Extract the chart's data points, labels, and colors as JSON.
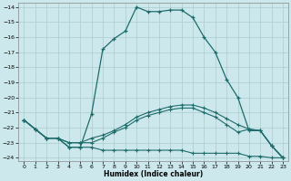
{
  "xlabel": "Humidex (Indice chaleur)",
  "bg_color": "#cce8ec",
  "grid_color": "#aacccc",
  "line_color": "#1e6b6b",
  "xlim": [
    -0.5,
    23.5
  ],
  "ylim": [
    -24.2,
    -13.7
  ],
  "yticks": [
    -24,
    -23,
    -22,
    -21,
    -20,
    -19,
    -18,
    -17,
    -16,
    -15,
    -14
  ],
  "xticks": [
    0,
    1,
    2,
    3,
    4,
    5,
    6,
    7,
    8,
    9,
    10,
    11,
    12,
    13,
    14,
    15,
    16,
    17,
    18,
    19,
    20,
    21,
    22,
    23
  ],
  "line1_x": [
    0,
    1,
    2,
    3,
    4,
    5,
    6,
    7,
    8,
    9,
    10,
    11,
    12,
    13,
    14,
    15,
    16,
    17,
    18,
    19,
    20,
    21,
    22,
    23
  ],
  "line1_y": [
    -21.5,
    -22.1,
    -22.7,
    -22.7,
    -23.3,
    -23.3,
    -21.1,
    -16.8,
    -16.1,
    -15.6,
    -14.0,
    -14.3,
    -14.3,
    -14.2,
    -14.2,
    -14.7,
    -16.0,
    -17.0,
    -18.8,
    -20.0,
    -22.2,
    -22.2,
    -23.2,
    -24.0
  ],
  "line2_x": [
    0,
    1,
    2,
    3,
    4,
    5,
    6,
    7,
    8,
    9,
    10,
    11,
    12,
    13,
    14,
    15,
    16,
    17,
    18,
    19,
    20,
    21,
    22,
    23
  ],
  "line2_y": [
    -21.5,
    -22.1,
    -22.7,
    -22.7,
    -23.3,
    -23.3,
    -23.3,
    -23.5,
    -23.5,
    -23.5,
    -23.5,
    -23.5,
    -23.5,
    -23.5,
    -23.5,
    -23.7,
    -23.7,
    -23.7,
    -23.7,
    -23.7,
    -23.9,
    -23.9,
    -24.0,
    -24.0
  ],
  "line3_x": [
    0,
    1,
    2,
    3,
    4,
    5,
    6,
    7,
    8,
    9,
    10,
    11,
    12,
    13,
    14,
    15,
    16,
    17,
    18,
    19,
    20,
    21,
    22,
    23
  ],
  "line3_y": [
    -21.5,
    -22.1,
    -22.7,
    -22.7,
    -23.0,
    -23.0,
    -22.7,
    -22.5,
    -22.2,
    -21.8,
    -21.3,
    -21.0,
    -20.8,
    -20.6,
    -20.5,
    -20.5,
    -20.7,
    -21.0,
    -21.4,
    -21.8,
    -22.1,
    -22.2,
    -23.2,
    -24.0
  ],
  "line4_x": [
    0,
    1,
    2,
    3,
    4,
    5,
    6,
    7,
    8,
    9,
    10,
    11,
    12,
    13,
    14,
    15,
    16,
    17,
    18,
    19,
    20,
    21,
    22,
    23
  ],
  "line4_y": [
    -21.5,
    -22.1,
    -22.7,
    -22.7,
    -23.0,
    -23.0,
    -23.0,
    -22.7,
    -22.3,
    -22.0,
    -21.5,
    -21.2,
    -21.0,
    -20.8,
    -20.7,
    -20.7,
    -21.0,
    -21.3,
    -21.8,
    -22.3,
    -22.1,
    -22.2,
    -23.2,
    -24.0
  ]
}
